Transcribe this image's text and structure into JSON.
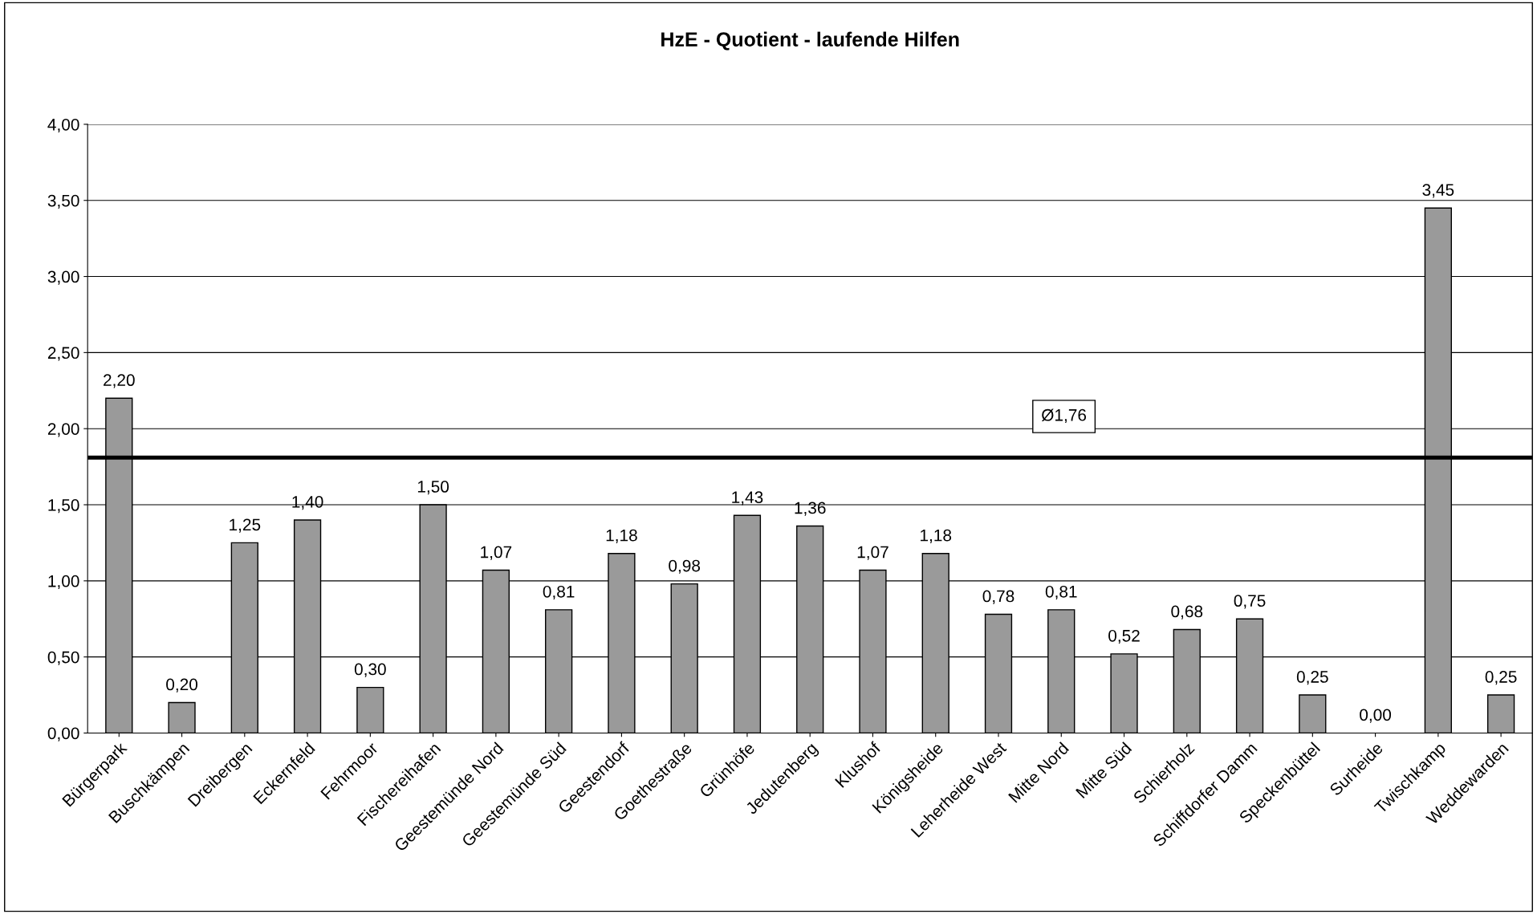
{
  "chart_data": {
    "type": "bar",
    "title": "HzE - Quotient - laufende Hilfen",
    "categories": [
      "Bürgerpark",
      "Buschkämpen",
      "Dreibergen",
      "Eckernfeld",
      "Fehrmoor",
      "Fischereihafen",
      "Geestemünde Nord",
      "Geestemünde Süd",
      "Geestendorf",
      "Goethestraße",
      "Grünhöfe",
      "Jedutenberg",
      "Klushof",
      "Königsheide",
      "Leherheide West",
      "Mitte Nord",
      "Mitte Süd",
      "Schierholz",
      "Schiffdorfer Damm",
      "Speckenbüttel",
      "Surheide",
      "Twischkamp",
      "Weddewarden"
    ],
    "values": [
      2.2,
      0.2,
      1.25,
      1.4,
      0.3,
      1.5,
      1.07,
      0.81,
      1.18,
      0.98,
      1.43,
      1.36,
      1.07,
      1.18,
      0.78,
      0.81,
      0.52,
      0.68,
      0.75,
      0.25,
      0.0,
      3.45,
      0.25
    ],
    "value_labels": [
      "2,20",
      "0,20",
      "1,25",
      "1,40",
      "0,30",
      "1,50",
      "1,07",
      "0,81",
      "1,18",
      "0,98",
      "1,43",
      "1,36",
      "1,07",
      "1,18",
      "0,78",
      "0,81",
      "0,52",
      "0,68",
      "0,75",
      "0,25",
      "0,00",
      "3,45",
      "0,25"
    ],
    "color": "#9a9a9a",
    "ylim": [
      0,
      4
    ],
    "yticks": [
      {
        "value": 0,
        "label": "0,00"
      },
      {
        "value": 0.5,
        "label": "0,50"
      },
      {
        "value": 1,
        "label": "1,00"
      },
      {
        "value": 1.5,
        "label": "1,50"
      },
      {
        "value": 2,
        "label": "2,00"
      },
      {
        "value": 2.5,
        "label": "2,50"
      },
      {
        "value": 3,
        "label": "3,00"
      },
      {
        "value": 3.5,
        "label": "3,50"
      },
      {
        "value": 4,
        "label": "4,00"
      }
    ],
    "grid": "y",
    "ref_lines": [
      {
        "axis": "y",
        "value": 1.81,
        "label": "Ø1,76",
        "color": "#000000"
      }
    ]
  }
}
